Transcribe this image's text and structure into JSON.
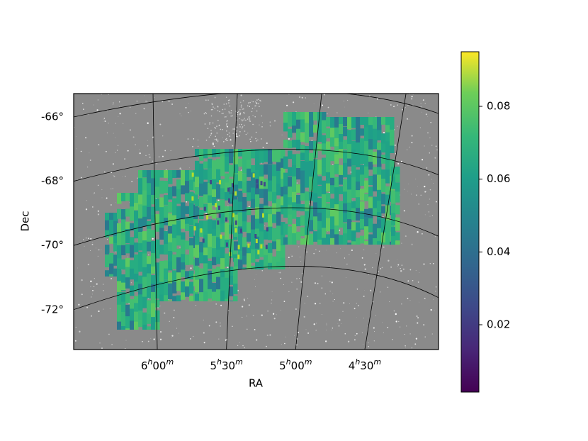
{
  "chart_data": {
    "type": "skymap",
    "xlabel": "RA",
    "ylabel": "Dec",
    "xticks": [
      {
        "value": 90,
        "label": "6h00m"
      },
      {
        "value": 82.5,
        "label": "5h30m"
      },
      {
        "value": 75,
        "label": "5h00m"
      },
      {
        "value": 67.5,
        "label": "4h30m"
      }
    ],
    "yticks": [
      {
        "value": -66,
        "label": "-66°"
      },
      {
        "value": -68,
        "label": "-68°"
      },
      {
        "value": -70,
        "label": "-70°"
      },
      {
        "value": -72,
        "label": "-72°"
      }
    ],
    "grid": true,
    "colormap": "viridis",
    "clim": [
      0.0015,
      0.095
    ],
    "cticks": [
      0.02,
      0.04,
      0.06,
      0.08
    ]
  }
}
